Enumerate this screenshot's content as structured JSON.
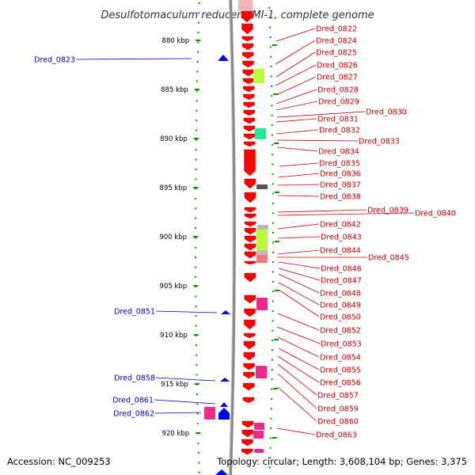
{
  "title": "Desulfotomaculum reducens MI-1, complete genome",
  "footer": {
    "accession": "Accession: NC_009253",
    "topology": "Topology: circular; Length: 3,608,104 bp; Genes: 3,375"
  },
  "colors": {
    "forward_strand_gene": "#ff0000",
    "reverse_strand_gene": "#0000ff",
    "forward_label": "#cc0000",
    "reverse_label": "#0000cc",
    "ruler_tick": "#009900",
    "backbone": "#999999"
  },
  "kbp_ticks": [
    "880 kbp",
    "885 kbp",
    "890 kbp",
    "895 kbp",
    "900 kbp",
    "905 kbp",
    "910 kbp",
    "915 kbp",
    "920 kbp"
  ],
  "reverse_labels": [
    "Dred_0823",
    "Dred_0851",
    "Dred_0858",
    "Dred_0861",
    "Dred_0862"
  ],
  "forward_labels": [
    "Dred_0822",
    "Dred_0824",
    "Dred_0825",
    "Dred_0826",
    "Dred_0827",
    "Dred_0828",
    "Dred_0829",
    "Dred_0830",
    "Dred_0831",
    "Dred_0832",
    "Dred_0833",
    "Dred_0834",
    "Dred_0835",
    "Dred_0836",
    "Dred_0837",
    "Dred_0838",
    "Dred_0839",
    "Dred_0840",
    "Dred_0842",
    "Dred_0843",
    "Dred_0844",
    "Dred_0845",
    "Dred_0846",
    "Dred_0847",
    "Dred_0848",
    "Dred_0849",
    "Dred_0850",
    "Dred_0852",
    "Dred_0853",
    "Dred_0854",
    "Dred_0855",
    "Dred_0856",
    "Dred_0857",
    "Dred_0859",
    "Dred_0860",
    "Dred_0863"
  ]
}
